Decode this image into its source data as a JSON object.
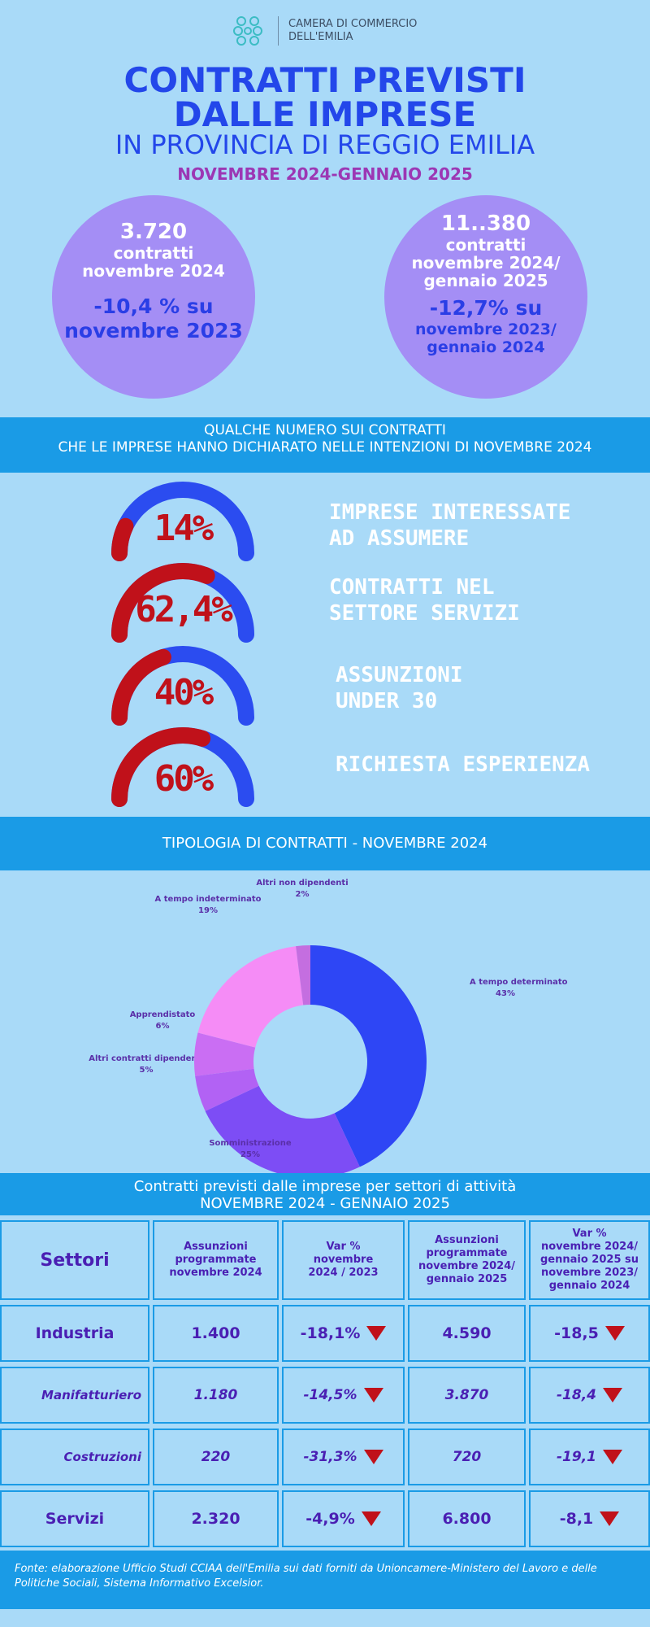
{
  "header": {
    "logo_line1": "CAMERA DI COMMERCIO",
    "logo_line2": "DELL'EMILIA",
    "title_line1": "CONTRATTI PREVISTI",
    "title_line2": "DALLE IMPRESE",
    "title_line3": "IN PROVINCIA DI REGGIO EMILIA",
    "period": "NOVEMBRE 2024-GENNAIO 2025"
  },
  "circles": [
    {
      "number": "3.720",
      "label1": "contratti",
      "label2": "novembre 2024",
      "label3": "",
      "var1": "-10,4 % su",
      "var2": "novembre 2023",
      "var3": ""
    },
    {
      "number": "11..380",
      "label1": "contratti",
      "label2": "novembre 2024/",
      "label3": "gennaio 2025",
      "var1": "-12,7% su",
      "var2": "novembre 2023/",
      "var3": "gennaio 2024"
    }
  ],
  "banner1": {
    "line1": "QUALCHE NUMERO SUI CONTRATTI",
    "line2": "CHE LE IMPRESE HANNO DICHIARATO NELLE INTENZIONI DI NOVEMBRE 2024"
  },
  "gauges": [
    {
      "pct": "14%",
      "value": 14,
      "label1": "IMPRESE INTERESSATE",
      "label2": "AD ASSUMERE"
    },
    {
      "pct": "62,4%",
      "value": 62.4,
      "label1": "CONTRATTI NEL",
      "label2": "SETTORE SERVIZI"
    },
    {
      "pct": "40%",
      "value": 40,
      "label1": "ASSUNZIONI",
      "label2": "UNDER 30"
    },
    {
      "pct": "60%",
      "value": 60,
      "label1": "RICHIESTA ESPERIENZA",
      "label2": ""
    }
  ],
  "gauge_colors": {
    "filled": "#c0111a",
    "empty": "#2b4cf0"
  },
  "banner2": {
    "title": "TIPOLOGIA DI CONTRATTI - NOVEMBRE 2024"
  },
  "chart_data": {
    "type": "pie",
    "title": "TIPOLOGIA DI CONTRATTI - NOVEMBRE 2024",
    "donut": true,
    "slices": [
      {
        "name": "A tempo determinato",
        "pct_label": "43%",
        "value": 43,
        "color": "#2e46f5"
      },
      {
        "name": "Somministrazione",
        "pct_label": "25%",
        "value": 25,
        "color": "#7d4df5"
      },
      {
        "name": "Altri contratti dipendenti",
        "pct_label": "5%",
        "value": 5,
        "color": "#b262f4"
      },
      {
        "name": "Apprendistato",
        "pct_label": "6%",
        "value": 6,
        "color": "#ca6ef3"
      },
      {
        "name": "A tempo indeterminato",
        "pct_label": "19%",
        "value": 19,
        "color": "#f58cf6"
      },
      {
        "name": "Altri non dipendenti",
        "pct_label": "2%",
        "value": 2,
        "color": "#c46ee0"
      }
    ]
  },
  "banner3": {
    "line1": "Contratti previsti dalle imprese per settori di attività",
    "line2": "NOVEMBRE 2024 - GENNAIO 2025"
  },
  "table": {
    "headers": [
      {
        "l1": "Settori",
        "l2": "",
        "l3": "",
        "l4": ""
      },
      {
        "l1": "Assunzioni",
        "l2": "programmate",
        "l3": "novembre  2024",
        "l4": ""
      },
      {
        "l1": "Var %",
        "l2": "novembre",
        "l3": "2024 / 2023",
        "l4": ""
      },
      {
        "l1": "Assunzioni",
        "l2": "programmate",
        "l3": "novembre 2024/",
        "l4": "gennaio 2025"
      },
      {
        "l1": "Var %",
        "l2": "novembre 2024/",
        "l3": "gennaio 2025 su",
        "l4": "novembre 2023/ gennaio 2024"
      }
    ],
    "rows": [
      {
        "name": "Industria",
        "c1": "1.400",
        "c2": "-18,1%",
        "c3": "4.590",
        "c4": "-18,5",
        "italic": false
      },
      {
        "name": "Manifatturiero",
        "c1": "1.180",
        "c2": "-14,5%",
        "c3": "3.870",
        "c4": "-18,4",
        "italic": true
      },
      {
        "name": "Costruzioni",
        "c1": "220",
        "c2": "-31,3%",
        "c3": "720",
        "c4": "-19,1",
        "italic": true
      },
      {
        "name": "Servizi",
        "c1": "2.320",
        "c2": "-4,9%",
        "c3": "6.800",
        "c4": "-8,1",
        "italic": false
      }
    ]
  },
  "footer": {
    "text": "Fonte: elaborazione Ufficio Studi CCIAA dell'Emilia sui dati forniti da Unioncamere-Ministero del Lavoro e delle Politiche Sociali, Sistema Informativo Excelsior."
  }
}
